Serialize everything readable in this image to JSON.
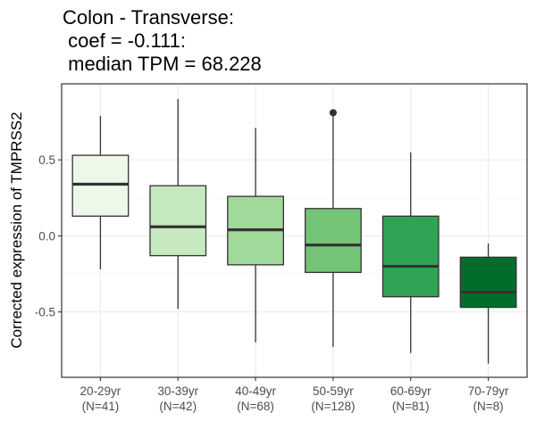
{
  "chart_data": {
    "type": "boxplot",
    "title_lines": [
      "Colon - Transverse:",
      " coef = -0.111:",
      " median TPM = 68.228"
    ],
    "xlabel": "",
    "ylabel": "Corrected expression of TMPRSS2",
    "ylim": [
      -0.93,
      1.0
    ],
    "yticks": [
      0.5,
      0.0,
      -0.5
    ],
    "ytick_labels": [
      "0.5",
      "0.0",
      "-0.5"
    ],
    "grid": true,
    "legend": "none",
    "categories": [
      {
        "label": "20-29yr",
        "n_label": "(N=41)"
      },
      {
        "label": "30-39yr",
        "n_label": "(N=42)"
      },
      {
        "label": "40-49yr",
        "n_label": "(N=68)"
      },
      {
        "label": "50-59yr",
        "n_label": "(N=128)"
      },
      {
        "label": "60-69yr",
        "n_label": "(N=81)"
      },
      {
        "label": "70-79yr",
        "n_label": "(N=8)"
      }
    ],
    "boxes": [
      {
        "whisker_low": -0.22,
        "q1": 0.13,
        "median": 0.34,
        "q3": 0.53,
        "whisker_high": 0.79,
        "outliers": [],
        "color": "#edf8e9"
      },
      {
        "whisker_low": -0.48,
        "q1": -0.13,
        "median": 0.06,
        "q3": 0.33,
        "whisker_high": 0.9,
        "outliers": [],
        "color": "#c7e9c0"
      },
      {
        "whisker_low": -0.7,
        "q1": -0.19,
        "median": 0.04,
        "q3": 0.26,
        "whisker_high": 0.71,
        "outliers": [],
        "color": "#a1d99b"
      },
      {
        "whisker_low": -0.73,
        "q1": -0.24,
        "median": -0.06,
        "q3": 0.18,
        "whisker_high": 0.79,
        "outliers": [
          0.81
        ],
        "color": "#74c476"
      },
      {
        "whisker_low": -0.77,
        "q1": -0.4,
        "median": -0.2,
        "q3": 0.13,
        "whisker_high": 0.55,
        "outliers": [],
        "color": "#31a354"
      },
      {
        "whisker_low": -0.84,
        "q1": -0.47,
        "median": -0.37,
        "q3": -0.14,
        "whisker_high": -0.05,
        "outliers": [],
        "color": "#006d2c"
      }
    ]
  }
}
